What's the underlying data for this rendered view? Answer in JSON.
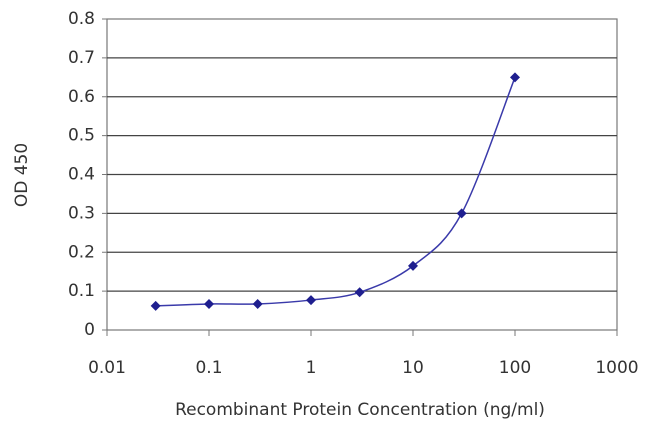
{
  "chart_data": {
    "type": "line",
    "xlabel": "Recombinant Protein Concentration (ng/ml)",
    "ylabel": "OD 450",
    "x": [
      0.03,
      0.1,
      0.3,
      1,
      3,
      10,
      30,
      100
    ],
    "series": [
      {
        "color": "#1f1f8f",
        "values": [
          0.062,
          0.067,
          0.067,
          0.077,
          0.097,
          0.165,
          0.3,
          0.65
        ]
      }
    ],
    "xscale": "log",
    "xlim": [
      0.01,
      1000
    ],
    "xticks": [
      0.01,
      0.1,
      1,
      10,
      100,
      1000
    ],
    "ylim": [
      0,
      0.8
    ],
    "yticks": [
      0,
      0.1,
      0.2,
      0.3,
      0.4,
      0.5,
      0.6,
      0.7,
      0.8
    ],
    "grid": true
  }
}
